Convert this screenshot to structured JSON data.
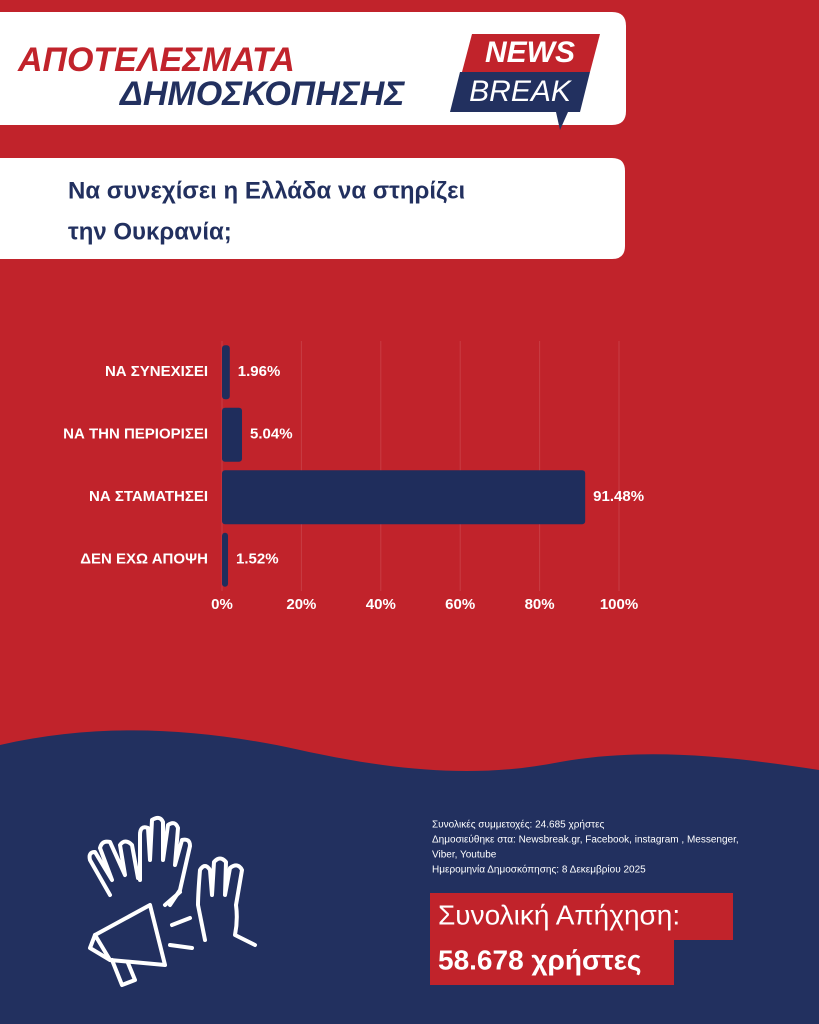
{
  "header": {
    "title_line1": "ΑΠΟΤΕΛΕΣΜΑΤΑ",
    "title_line2": "ΔΗΜΟΣΚΟΠΗΣΗΣ",
    "logo_top": "NEWS",
    "logo_bottom": "BREAK"
  },
  "question": {
    "line1": "Να συνεχίσει η Ελλάδα να στηρίζει",
    "line2": "την Ουκρανία;"
  },
  "chart_data": {
    "type": "bar",
    "orientation": "horizontal",
    "categories": [
      "ΝΑ ΣΥΝΕΧΙΣΕΙ",
      "ΝΑ ΤΗΝ ΠΕΡΙΟΡΙΣΕΙ",
      "ΝΑ ΣΤΑΜΑΤΗΣΕΙ",
      "ΔΕΝ ΕΧΩ ΑΠΟΨΗ"
    ],
    "values": [
      1.96,
      5.04,
      91.48,
      1.52
    ],
    "value_labels": [
      "1.96%",
      "5.04%",
      "91.48%",
      "1.52%"
    ],
    "color": "#1f2d5c",
    "xlim": [
      0,
      100
    ],
    "xticks": [
      {
        "value": 0,
        "label": "0%"
      },
      {
        "value": 20,
        "label": "20%"
      },
      {
        "value": 40,
        "label": "40%"
      },
      {
        "value": 60,
        "label": "60%"
      },
      {
        "value": 80,
        "label": "80%"
      },
      {
        "value": 100,
        "label": "100%"
      }
    ],
    "grid": true
  },
  "footer": {
    "lines": [
      "Συνολικές συμμετοχές: 24.685 χρήστες",
      "Δημοσιεύθηκε στα: Newsbreak.gr, Facebook, instagram , Messenger,",
      "Viber, Youtube",
      "Ημερομηνία Δημοσκόπησης: 8 Δεκεμβρίου 2025"
    ],
    "total_line1": "Συνολική Απήχηση:",
    "total_line2": "58.678 χρήστες"
  }
}
